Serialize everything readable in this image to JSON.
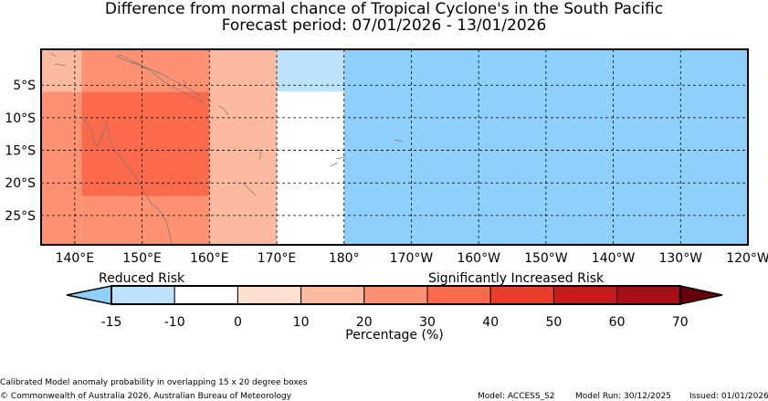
{
  "title": "Difference from normal chance of Tropical Cyclone's in the South Pacific",
  "subtitle": "Forecast period: 07/01/2026 - 13/01/2026",
  "map": {
    "lat_labels": [
      "5°S",
      "10°S",
      "15°S",
      "20°S",
      "25°S"
    ],
    "lon_labels": [
      "140°E",
      "150°E",
      "160°E",
      "170°E",
      "180°",
      "170°W",
      "160°W",
      "150°W",
      "140°W",
      "130°W",
      "120°W"
    ],
    "lon_range": [
      135,
      240
    ],
    "lat_range": [
      -29.5,
      0.5
    ],
    "grid": "dashed"
  },
  "risk_cells": [
    {
      "lon0": 135,
      "lon1": 141,
      "lat0": -6,
      "lat1": 0.5,
      "value": 10
    },
    {
      "lon0": 141,
      "lon1": 160,
      "lat0": -6,
      "lat1": 0.5,
      "value": 20
    },
    {
      "lon0": 135,
      "lon1": 141,
      "lat0": -29.5,
      "lat1": -6,
      "value": 20
    },
    {
      "lon0": 141,
      "lon1": 160,
      "lat0": -22,
      "lat1": -6,
      "value": 30
    },
    {
      "lon0": 141,
      "lon1": 160,
      "lat0": -29.5,
      "lat1": -22,
      "value": 20
    },
    {
      "lon0": 160,
      "lon1": 170,
      "lat0": -29.5,
      "lat1": 0.5,
      "value": 10
    },
    {
      "lon0": 170,
      "lon1": 180,
      "lat0": -6,
      "lat1": 0.5,
      "value": -15
    },
    {
      "lon0": 170,
      "lon1": 180,
      "lat0": -29.5,
      "lat1": -6,
      "value": -5
    },
    {
      "lon0": 180,
      "lon1": 240,
      "lat0": -29.5,
      "lat1": 0.5,
      "value": -20
    }
  ],
  "legend": {
    "left_label": "Reduced Risk",
    "right_label": "Significantly Increased Risk",
    "ticks": [
      "-15",
      "-10",
      "0",
      "10",
      "20",
      "30",
      "40",
      "50",
      "60",
      "70"
    ],
    "tick_values": [
      -15,
      -10,
      0,
      10,
      20,
      30,
      40,
      50,
      60,
      70
    ],
    "colors": [
      "#bde3fb",
      "#ffffff",
      "#fee0d2",
      "#fcbba1",
      "#fc9272",
      "#fb6a4a",
      "#ef3b2c",
      "#cb181d",
      "#a50f15"
    ],
    "below_color": "#8ecffc",
    "above_color": "#67000d",
    "label": "Percentage (%)"
  },
  "footer": {
    "note": "Calibrated Model anomaly probability in overlapping 15 x 20 degree boxes",
    "copyright": "© Commonwealth of Australia 2026, Australian Bureau of Meteorology",
    "model": "Model: ACCESS_S2",
    "model_run": "Model Run: 30/12/2025",
    "issued": "Issued: 01/01/2026"
  }
}
